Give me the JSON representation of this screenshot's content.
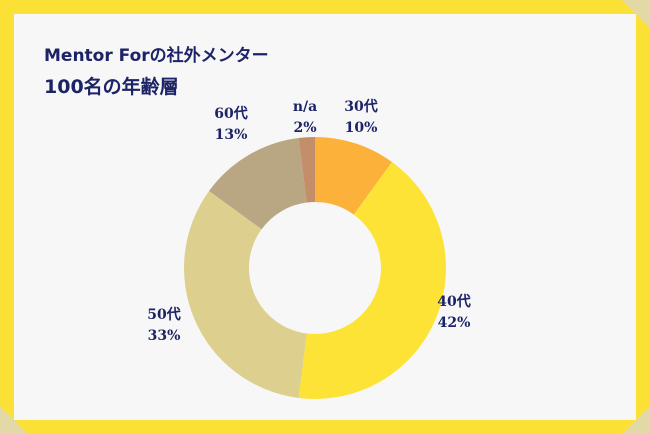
{
  "header": {
    "title_line1": "Mentor Forの社外メンター",
    "title_line2": "100名の年齢層"
  },
  "chart_data": {
    "type": "pie",
    "donut": true,
    "categories": [
      "30代",
      "40代",
      "50代",
      "60代",
      "n/a"
    ],
    "values": [
      10,
      42,
      33,
      13,
      2
    ],
    "value_labels": [
      "10%",
      "42%",
      "33%",
      "13%",
      "2%"
    ],
    "colors": [
      "#fbb13a",
      "#fde336",
      "#ddd08f",
      "#b9a683",
      "#c48e6a"
    ],
    "legend": "none"
  }
}
